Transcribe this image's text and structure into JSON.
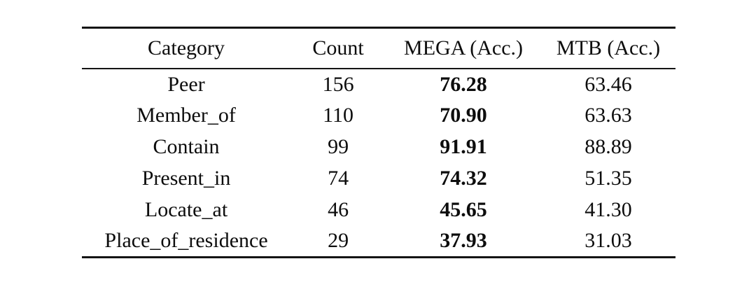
{
  "table": {
    "columns": {
      "category": "Category",
      "count": "Count",
      "mega": "MEGA (Acc.)",
      "mtb": "MTB (Acc.)"
    },
    "rows": [
      {
        "category": "Peer",
        "count": "156",
        "mega": "76.28",
        "mtb": "63.46"
      },
      {
        "category": "Member_of",
        "count": "110",
        "mega": "70.90",
        "mtb": "63.63"
      },
      {
        "category": "Contain",
        "count": "99",
        "mega": "91.91",
        "mtb": "88.89"
      },
      {
        "category": "Present_in",
        "count": "74",
        "mega": "74.32",
        "mtb": "51.35"
      },
      {
        "category": "Locate_at",
        "count": "46",
        "mega": "45.65",
        "mtb": "41.30"
      },
      {
        "category": "Place_of_residence",
        "count": "29",
        "mega": "37.93",
        "mtb": "31.03"
      }
    ],
    "style_notes": {
      "bold_column": "MEGA (Acc.)",
      "text_color": "#0d0d0d",
      "rule_color": "#141414",
      "background_color": "#ffffff"
    }
  }
}
